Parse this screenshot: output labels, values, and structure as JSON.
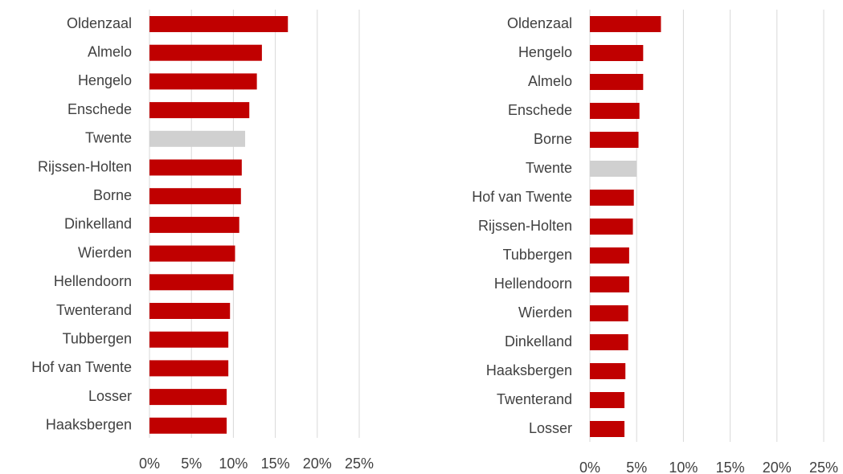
{
  "chart_data": [
    {
      "type": "bar",
      "orientation": "horizontal",
      "categories": [
        "Oldenzaal",
        "Almelo",
        "Hengelo",
        "Enschede",
        "Twente",
        "Rijssen-Holten",
        "Borne",
        "Dinkelland",
        "Wierden",
        "Hellendoorn",
        "Twenterand",
        "Tubbergen",
        "Hof van Twente",
        "Losser",
        "Haaksbergen"
      ],
      "values": [
        16.5,
        13.4,
        12.8,
        11.9,
        11.4,
        11.0,
        10.9,
        10.7,
        10.2,
        10.0,
        9.6,
        9.4,
        9.4,
        9.2,
        9.2
      ],
      "colors": [
        "#c00000",
        "#c00000",
        "#c00000",
        "#c00000",
        "#d0d0d0",
        "#c00000",
        "#c00000",
        "#c00000",
        "#c00000",
        "#c00000",
        "#c00000",
        "#c00000",
        "#c00000",
        "#c00000",
        "#c00000"
      ],
      "xlim": [
        0,
        25
      ],
      "xticks": [
        {
          "value": 0,
          "label": "0%"
        },
        {
          "value": 5,
          "label": "5%"
        },
        {
          "value": 10,
          "label": "10%"
        },
        {
          "value": 15,
          "label": "15%"
        },
        {
          "value": 20,
          "label": "20%"
        },
        {
          "value": 25,
          "label": "25%"
        }
      ],
      "grid": true
    },
    {
      "type": "bar",
      "orientation": "horizontal",
      "categories": [
        "Oldenzaal",
        "Hengelo",
        "Almelo",
        "Enschede",
        "Borne",
        "Twente",
        "Hof van Twente",
        "Rijssen-Holten",
        "Tubbergen",
        "Hellendoorn",
        "Wierden",
        "Dinkelland",
        "Haaksbergen",
        "Twenterand",
        "Losser"
      ],
      "values": [
        7.6,
        5.7,
        5.7,
        5.3,
        5.2,
        5.0,
        4.7,
        4.6,
        4.2,
        4.2,
        4.1,
        4.1,
        3.8,
        3.7,
        3.7
      ],
      "colors": [
        "#c00000",
        "#c00000",
        "#c00000",
        "#c00000",
        "#c00000",
        "#d0d0d0",
        "#c00000",
        "#c00000",
        "#c00000",
        "#c00000",
        "#c00000",
        "#c00000",
        "#c00000",
        "#c00000",
        "#c00000"
      ],
      "xlim": [
        0,
        25
      ],
      "xticks": [
        {
          "value": 0,
          "label": "0%"
        },
        {
          "value": 5,
          "label": "5%"
        },
        {
          "value": 10,
          "label": "10%"
        },
        {
          "value": 15,
          "label": "15%"
        },
        {
          "value": 20,
          "label": "20%"
        },
        {
          "value": 25,
          "label": "25%"
        }
      ],
      "grid": true
    }
  ]
}
